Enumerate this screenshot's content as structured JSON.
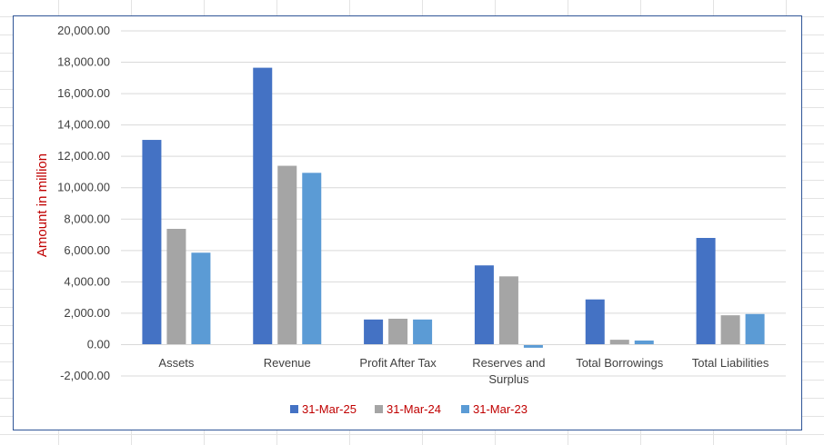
{
  "chart_data": {
    "type": "bar",
    "title": "",
    "xlabel": "",
    "ylabel": "Amount in million",
    "ylim": [
      -2000,
      20000
    ],
    "ytick_step": 2000,
    "ytick_labels": [
      "-2,000.00",
      "0.00",
      "2,000.00",
      "4,000.00",
      "6,000.00",
      "8,000.00",
      "10,000.00",
      "12,000.00",
      "14,000.00",
      "16,000.00",
      "18,000.00",
      "20,000.00"
    ],
    "categories": [
      [
        "Assets"
      ],
      [
        "Revenue"
      ],
      [
        "Profit After Tax"
      ],
      [
        "Reserves and",
        "Surplus"
      ],
      [
        "Total Borrowings"
      ],
      [
        "Total Liabilities"
      ]
    ],
    "series": [
      {
        "name": "31-Mar-25",
        "color": "#4472c4",
        "values": [
          13050,
          17650,
          1600,
          5050,
          2880,
          6800
        ]
      },
      {
        "name": "31-Mar-24",
        "color": "#a5a5a5",
        "values": [
          7380,
          11400,
          1650,
          4350,
          310,
          1870
        ]
      },
      {
        "name": "31-Mar-23",
        "color": "#5b9bd5",
        "values": [
          5860,
          10950,
          1600,
          -200,
          260,
          1950
        ]
      }
    ],
    "grid": true,
    "legend": "bottom",
    "colors": {
      "axis_title": "#c00000",
      "legend_text": "#c00000",
      "gridline": "#d9d9d9",
      "frame": "#2f5597"
    }
  }
}
